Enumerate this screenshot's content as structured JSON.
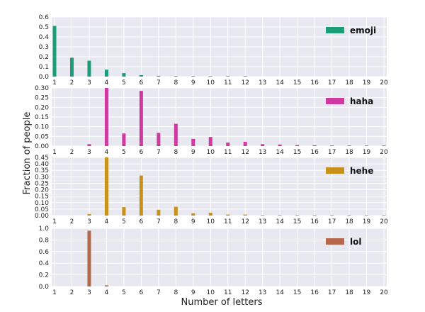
{
  "chart_data": {
    "type": "bar",
    "xlabel": "Number of letters",
    "ylabel": "Fraction of people",
    "grid": true,
    "legend_placement": "top-right",
    "x": [
      1,
      2,
      3,
      4,
      5,
      6,
      7,
      8,
      9,
      10,
      11,
      12,
      13,
      14,
      15,
      16,
      17,
      18,
      19,
      20
    ],
    "panels": [
      {
        "name": "emoji",
        "color": "#1b9e77",
        "ylim": [
          0,
          0.6
        ],
        "yticks": [
          "0.0",
          "0.1",
          "0.2",
          "0.3",
          "0.4",
          "0.5",
          "0.6"
        ],
        "values": [
          0.51,
          0.19,
          0.16,
          0.07,
          0.035,
          0.015,
          0.008,
          0.004,
          0.002,
          0.002,
          0.001,
          0.001,
          0,
          0,
          0,
          0,
          0,
          0,
          0,
          0
        ]
      },
      {
        "name": "haha",
        "color": "#d03aa0",
        "ylim": [
          0,
          0.3
        ],
        "yticks": [
          "0.00",
          "0.05",
          "0.10",
          "0.15",
          "0.20",
          "0.25",
          "0.30"
        ],
        "values": [
          0,
          0,
          0.01,
          0.3,
          0.065,
          0.285,
          0.068,
          0.115,
          0.037,
          0.047,
          0.018,
          0.022,
          0.01,
          0.008,
          0.005,
          0.004,
          0.003,
          0.002,
          0.002,
          0.001
        ]
      },
      {
        "name": "hehe",
        "color": "#c8921a",
        "ylim": [
          0,
          0.45
        ],
        "yticks": [
          "0.00",
          "0.05",
          "0.10",
          "0.15",
          "0.20",
          "0.25",
          "0.30",
          "0.35",
          "0.40",
          "0.45"
        ],
        "values": [
          0,
          0,
          0.012,
          0.45,
          0.065,
          0.31,
          0.045,
          0.068,
          0.018,
          0.022,
          0.008,
          0.008,
          0.003,
          0.003,
          0.002,
          0.002,
          0.001,
          0.001,
          0.001,
          0.001
        ]
      },
      {
        "name": "lol",
        "color": "#b5694a",
        "ylim": [
          0,
          1.0
        ],
        "yticks": [
          "0.0",
          "0.2",
          "0.4",
          "0.6",
          "0.8",
          "1.0"
        ],
        "values": [
          0,
          0,
          0.96,
          0.02,
          0,
          0,
          0,
          0,
          0,
          0,
          0,
          0,
          0,
          0,
          0,
          0,
          0,
          0,
          0,
          0
        ]
      }
    ]
  }
}
